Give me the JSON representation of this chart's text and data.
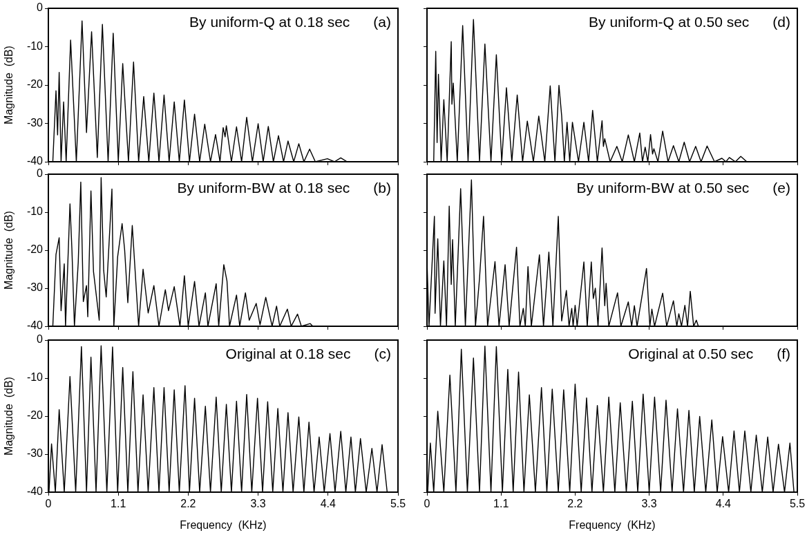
{
  "chart_data": [
    {
      "type": "line",
      "title": "By uniform-Q at 0.18 sec",
      "annotations": [
        "(a)"
      ],
      "ylabel": "Magnitude  (dB)",
      "color": "#000000",
      "xlim": [
        0,
        5.5
      ],
      "xticks": [
        0,
        1.1,
        2.2,
        3.3,
        4.4,
        5.5
      ],
      "ylim": [
        -40,
        0
      ],
      "yticks": [
        -40,
        -30,
        -20,
        -10,
        0
      ],
      "tick_labels": "y",
      "x": [
        0.07,
        0.12,
        0.145,
        0.17,
        0.2,
        0.24,
        0.28,
        0.35,
        0.44,
        0.53,
        0.6,
        0.68,
        0.77,
        0.85,
        0.94,
        1.02,
        1.1,
        1.17,
        1.26,
        1.34,
        1.42,
        1.5,
        1.58,
        1.66,
        1.74,
        1.82,
        1.9,
        1.98,
        2.06,
        2.14,
        2.22,
        2.3,
        2.38,
        2.46,
        2.55,
        2.63,
        2.7,
        2.75,
        2.78,
        2.8,
        2.88,
        2.96,
        3.04,
        3.12,
        3.21,
        3.3,
        3.38,
        3.46,
        3.54,
        3.62,
        3.7,
        3.77,
        3.86,
        3.94,
        4.02,
        4.11,
        4.2,
        4.39,
        4.5,
        4.6,
        4.7
      ],
      "values": [
        -40,
        -21.5,
        -33,
        -16.7,
        -40,
        -24.4,
        -40,
        -8.3,
        -40,
        -3.3,
        -32.4,
        -6.1,
        -38.9,
        -4.2,
        -40,
        -6.5,
        -40,
        -14.4,
        -40,
        -14,
        -40,
        -23,
        -40,
        -22.1,
        -40,
        -22.6,
        -40,
        -24.4,
        -40,
        -23.9,
        -40,
        -27.6,
        -40,
        -30.2,
        -40,
        -32.9,
        -40,
        -31.1,
        -33.5,
        -30.6,
        -40,
        -30.9,
        -40,
        -28.4,
        -40,
        -30.1,
        -40,
        -30.8,
        -40,
        -33.2,
        -40,
        -34.6,
        -40,
        -35.3,
        -40,
        -36.7,
        -40,
        -39.2,
        -40,
        -39,
        -40
      ]
    },
    {
      "type": "line",
      "title": "By uniform-BW at 0.18 sec",
      "annotations": [
        "(b)"
      ],
      "ylabel": "Magnitude  (dB)",
      "color": "#000000",
      "xlim": [
        0,
        5.5
      ],
      "xticks": [
        0,
        1.1,
        2.2,
        3.3,
        4.4,
        5.5
      ],
      "ylim": [
        -40,
        0
      ],
      "yticks": [
        -40,
        -30,
        -20,
        -10,
        0
      ],
      "tick_labels": "y",
      "x": [
        0.07,
        0.12,
        0.17,
        0.2,
        0.25,
        0.27,
        0.34,
        0.37,
        0.41,
        0.47,
        0.51,
        0.55,
        0.6,
        0.62,
        0.67,
        0.71,
        0.8,
        0.83,
        0.87,
        0.91,
        1.0,
        1.03,
        1.09,
        1.16,
        1.2,
        1.25,
        1.32,
        1.42,
        1.49,
        1.57,
        1.66,
        1.74,
        1.84,
        1.89,
        1.98,
        2.07,
        2.14,
        2.2,
        2.3,
        2.37,
        2.47,
        2.51,
        2.64,
        2.68,
        2.76,
        2.81,
        2.85,
        2.96,
        3.01,
        3.1,
        3.16,
        3.27,
        3.33,
        3.42,
        3.52,
        3.59,
        3.64,
        3.76,
        3.82,
        3.92,
        3.98,
        4.12,
        4.16
      ],
      "values": [
        -40,
        -21.1,
        -16.7,
        -35.9,
        -23.6,
        -40,
        -7.8,
        -19.6,
        -40,
        -23.2,
        -2.1,
        -33.5,
        -29.3,
        -37.5,
        -4.4,
        -25.6,
        -38.4,
        -0.9,
        -25.3,
        -32.3,
        -3.9,
        -40,
        -21.7,
        -13,
        -19.9,
        -33.8,
        -13.5,
        -40,
        -25,
        -36.5,
        -29.3,
        -40,
        -30.4,
        -35.9,
        -29.6,
        -40,
        -26.7,
        -40,
        -28.2,
        -40,
        -31.2,
        -40,
        -28.8,
        -40,
        -23.8,
        -28.1,
        -40,
        -31.8,
        -40,
        -31.2,
        -38.4,
        -34,
        -39.6,
        -32.4,
        -40,
        -34.7,
        -40,
        -35.5,
        -40,
        -36.8,
        -40,
        -39.3,
        -40
      ]
    },
    {
      "type": "line",
      "title": "Original at 0.18 sec",
      "annotations": [
        "(c)"
      ],
      "xlabel": "Frequency  (KHz)",
      "ylabel": "Magnitude  (dB)",
      "color": "#000000",
      "xlim": [
        0,
        5.5
      ],
      "xticks": [
        0,
        1.1,
        2.2,
        3.3,
        4.4,
        5.5
      ],
      "ylim": [
        -40,
        0
      ],
      "yticks": [
        -40,
        -30,
        -20,
        -10,
        0
      ],
      "x": [
        0.01,
        0.05,
        0.11,
        0.17,
        0.25,
        0.34,
        0.43,
        0.52,
        0.6,
        0.67,
        0.75,
        0.83,
        0.92,
        1.01,
        1.09,
        1.17,
        1.25,
        1.33,
        1.41,
        1.49,
        1.57,
        1.66,
        1.74,
        1.82,
        1.9,
        1.98,
        2.06,
        2.15,
        2.22,
        2.3,
        2.38,
        2.47,
        2.55,
        2.64,
        2.72,
        2.8,
        2.88,
        2.96,
        3.04,
        3.12,
        3.2,
        3.29,
        3.37,
        3.45,
        3.53,
        3.61,
        3.69,
        3.77,
        3.85,
        3.94,
        4.02,
        4.1,
        4.18,
        4.26,
        4.34,
        4.43,
        4.51,
        4.6,
        4.68,
        4.76,
        4.83,
        4.91,
        5,
        5.09,
        5.17,
        5.25,
        5.33,
        5.5
      ],
      "values": [
        -40,
        -27.3,
        -40,
        -18.3,
        -40,
        -9.6,
        -40,
        -1.7,
        -40,
        -4.5,
        -40,
        -1.5,
        -40,
        -1.8,
        -40,
        -7.2,
        -40,
        -8.3,
        -40,
        -14.4,
        -40,
        -12.5,
        -40,
        -12.5,
        -40,
        -13.1,
        -40,
        -12,
        -40,
        -15.3,
        -40,
        -17.4,
        -40,
        -15,
        -40,
        -16.9,
        -40,
        -16.1,
        -40,
        -14.3,
        -40,
        -15.3,
        -40,
        -16.2,
        -40,
        -18,
        -40,
        -19.1,
        -40,
        -20.2,
        -40,
        -21.6,
        -40,
        -25.5,
        -40,
        -24.6,
        -40,
        -24,
        -40,
        -25.5,
        -40,
        -25.9,
        -40,
        -28.5,
        -40,
        -27.5,
        -40,
        -40
      ]
    },
    {
      "type": "line",
      "title": "By uniform-Q at 0.50 sec",
      "annotations": [
        "(d)"
      ],
      "color": "#000000",
      "xlim": [
        0,
        5.5
      ],
      "xticks": [
        0,
        1.1,
        2.2,
        3.3,
        4.4,
        5.5
      ],
      "ylim": [
        -40,
        0
      ],
      "yticks": [
        -40,
        -30,
        -20,
        -10,
        0
      ],
      "tick_labels": false,
      "x": [
        0.1,
        0.13,
        0.15,
        0.17,
        0.21,
        0.25,
        0.3,
        0.36,
        0.37,
        0.39,
        0.45,
        0.53,
        0.61,
        0.69,
        0.78,
        0.86,
        0.95,
        1.03,
        1.11,
        1.18,
        1.26,
        1.34,
        1.42,
        1.49,
        1.58,
        1.66,
        1.75,
        1.83,
        1.9,
        1.96,
        2.0,
        2.04,
        2.08,
        2.12,
        2.16,
        2.25,
        2.33,
        2.4,
        2.46,
        2.53,
        2.6,
        2.62,
        2.64,
        2.72,
        2.82,
        2.9,
        2.99,
        3.08,
        3.16,
        3.2,
        3.24,
        3.28,
        3.32,
        3.35,
        3.37,
        3.43,
        3.5,
        3.58,
        3.66,
        3.74,
        3.82,
        3.9,
        3.99,
        4.07,
        4.16,
        4.27,
        4.38,
        4.44,
        4.49,
        4.58,
        4.66,
        4.75
      ],
      "values": [
        -40,
        -11.2,
        -35,
        -17.2,
        -40,
        -23.8,
        -40,
        -8.7,
        -25,
        -19.5,
        -40,
        -4.5,
        -40,
        -2.9,
        -40,
        -9.3,
        -40,
        -12.1,
        -40,
        -20.7,
        -40,
        -22.6,
        -40,
        -29.4,
        -40,
        -28.1,
        -40,
        -20.2,
        -40,
        -20.1,
        -28,
        -40,
        -29.7,
        -40,
        -29.7,
        -40,
        -29.7,
        -40,
        -26.6,
        -40,
        -29.3,
        -36,
        -34,
        -40,
        -36,
        -40,
        -33,
        -40,
        -32.5,
        -40,
        -36.2,
        -40,
        -32.9,
        -38,
        -36.6,
        -40,
        -32,
        -40,
        -35.8,
        -40,
        -34.9,
        -40,
        -36,
        -40,
        -35.9,
        -40,
        -39.1,
        -40,
        -38.9,
        -40,
        -38.6,
        -40
      ]
    },
    {
      "type": "line",
      "title": "By uniform-BW at 0.50 sec",
      "annotations": [
        "(e)"
      ],
      "color": "#000000",
      "xlim": [
        0,
        5.5
      ],
      "xticks": [
        0,
        1.1,
        2.2,
        3.3,
        4.4,
        5.5
      ],
      "ylim": [
        -40,
        0
      ],
      "yticks": [
        -40,
        -30,
        -20,
        -10,
        0
      ],
      "tick_labels": false,
      "x": [
        0,
        0.03,
        0.11,
        0.12,
        0.16,
        0.2,
        0.25,
        0.29,
        0.33,
        0.36,
        0.38,
        0.42,
        0.5,
        0.57,
        0.66,
        0.72,
        0.78,
        0.84,
        0.9,
        1.01,
        1.07,
        1.16,
        1.22,
        1.33,
        1.38,
        1.43,
        1.46,
        1.5,
        1.55,
        1.67,
        1.73,
        1.81,
        1.87,
        1.95,
        2.0,
        2.07,
        2.11,
        2.15,
        2.17,
        2.2,
        2.23,
        2.33,
        2.38,
        2.44,
        2.47,
        2.5,
        2.54,
        2.6,
        2.64,
        2.66,
        2.7,
        2.83,
        2.88,
        2.99,
        3.04,
        3.08,
        3.12,
        3.26,
        3.31,
        3.34,
        3.38,
        3.5,
        3.56,
        3.66,
        3.71,
        3.74,
        3.78,
        3.83,
        3.87,
        3.91,
        3.96,
        4.0,
        4.03
      ],
      "values": [
        -22.8,
        -40,
        -11.1,
        -36.6,
        -17,
        -40,
        -22.8,
        -40,
        -8.4,
        -29,
        -17.2,
        -40,
        -3.8,
        -40,
        -1.5,
        -40,
        -27.4,
        -11.1,
        -40,
        -23,
        -40,
        -23.8,
        -40,
        -19.2,
        -40,
        -35.3,
        -40,
        -24.3,
        -40,
        -21.2,
        -40,
        -20.5,
        -40,
        -11.1,
        -38.6,
        -30.6,
        -40,
        -35.3,
        -40,
        -34.5,
        -40,
        -23.1,
        -40,
        -23.1,
        -32.7,
        -30,
        -40,
        -19.4,
        -34.6,
        -28.7,
        -40,
        -31.2,
        -40,
        -33.6,
        -40,
        -34.6,
        -40,
        -24.8,
        -40,
        -35.5,
        -40,
        -31.3,
        -40,
        -33.3,
        -40,
        -36.7,
        -40,
        -34.5,
        -40,
        -30.8,
        -40,
        -38.4,
        -40
      ]
    },
    {
      "type": "line",
      "title": "Original at 0.50 sec",
      "annotations": [
        "(f)"
      ],
      "xlabel": "Frequency  (KHz)",
      "color": "#000000",
      "xlim": [
        0,
        5.5
      ],
      "xticks": [
        0,
        1.1,
        2.2,
        3.3,
        4.4,
        5.5
      ],
      "ylim": [
        -40,
        0
      ],
      "yticks": [
        -40,
        -30,
        -20,
        -10,
        0
      ],
      "tick_labels": "x",
      "x": [
        0.01,
        0.05,
        0.1,
        0.16,
        0.25,
        0.34,
        0.43,
        0.51,
        0.6,
        0.69,
        0.78,
        0.86,
        0.95,
        1.03,
        1.12,
        1.2,
        1.28,
        1.36,
        1.44,
        1.52,
        1.61,
        1.7,
        1.78,
        1.86,
        1.95,
        2.03,
        2.12,
        2.2,
        2.29,
        2.37,
        2.45,
        2.53,
        2.62,
        2.7,
        2.79,
        2.87,
        2.96,
        3.05,
        3.13,
        3.21,
        3.3,
        3.38,
        3.47,
        3.55,
        3.64,
        3.72,
        3.81,
        3.89,
        3.97,
        4.05,
        4.14,
        4.23,
        4.31,
        4.39,
        4.48,
        4.56,
        4.64,
        4.72,
        4.81,
        4.89,
        4.98,
        5.06,
        5.14,
        5.22,
        5.31,
        5.39,
        5.45,
        5.5
      ],
      "values": [
        -40,
        -27.1,
        -40,
        -18.7,
        -40,
        -9.2,
        -40,
        -2.4,
        -40,
        -4.7,
        -40,
        -1.6,
        -40,
        -1.7,
        -40,
        -7.7,
        -40,
        -8.4,
        -40,
        -14.4,
        -40,
        -12.5,
        -40,
        -12.9,
        -40,
        -13.1,
        -40,
        -11.6,
        -40,
        -15.2,
        -40,
        -17.2,
        -40,
        -15,
        -40,
        -16.5,
        -40,
        -16.1,
        -40,
        -14.2,
        -40,
        -15,
        -40,
        -15.8,
        -40,
        -18.1,
        -40,
        -18.5,
        -40,
        -20.1,
        -40,
        -21,
        -40,
        -25.4,
        -40,
        -23.9,
        -40,
        -23.9,
        -40,
        -25,
        -40,
        -25.5,
        -40,
        -27.4,
        -40,
        -27.1,
        -40,
        -40
      ]
    }
  ]
}
